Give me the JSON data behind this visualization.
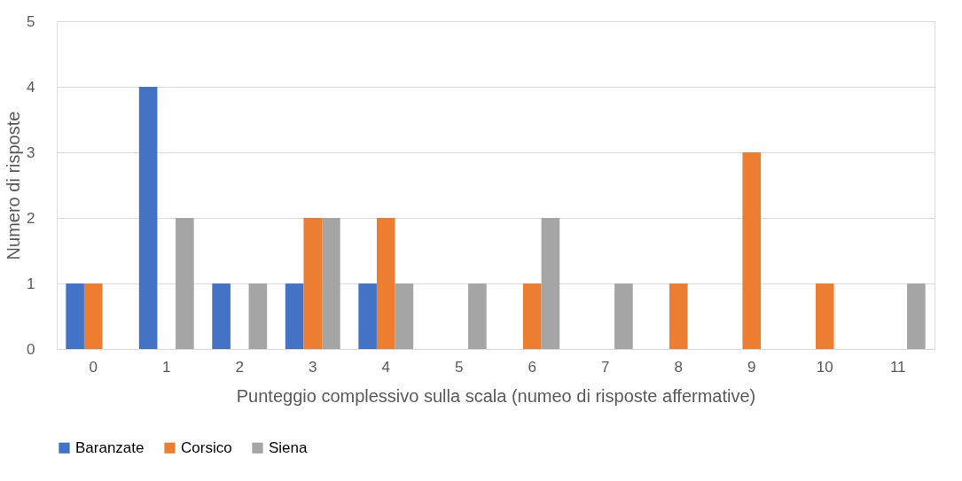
{
  "chart_data": {
    "type": "bar",
    "xlabel": "Punteggio complessivo sulla scala (numeo di risposte affermative)",
    "ylabel": "Numero di risposte",
    "categories": [
      "0",
      "1",
      "2",
      "3",
      "4",
      "5",
      "6",
      "7",
      "8",
      "9",
      "10",
      "11"
    ],
    "series": [
      {
        "name": "Baranzate",
        "color": "#4472c4",
        "values": [
          1,
          4,
          1,
          1,
          1,
          0,
          0,
          0,
          0,
          0,
          0,
          0
        ]
      },
      {
        "name": "Corsico",
        "color": "#ed7d31",
        "values": [
          1,
          0,
          0,
          2,
          2,
          0,
          1,
          0,
          1,
          3,
          1,
          0
        ]
      },
      {
        "name": "Siena",
        "color": "#a5a5a5",
        "values": [
          0,
          2,
          1,
          2,
          1,
          1,
          2,
          1,
          0,
          0,
          0,
          1
        ]
      }
    ],
    "ylim": [
      0,
      5
    ],
    "yticks": [
      0,
      1,
      2,
      3,
      4,
      5
    ],
    "grid": "y",
    "legend": "bottom"
  }
}
